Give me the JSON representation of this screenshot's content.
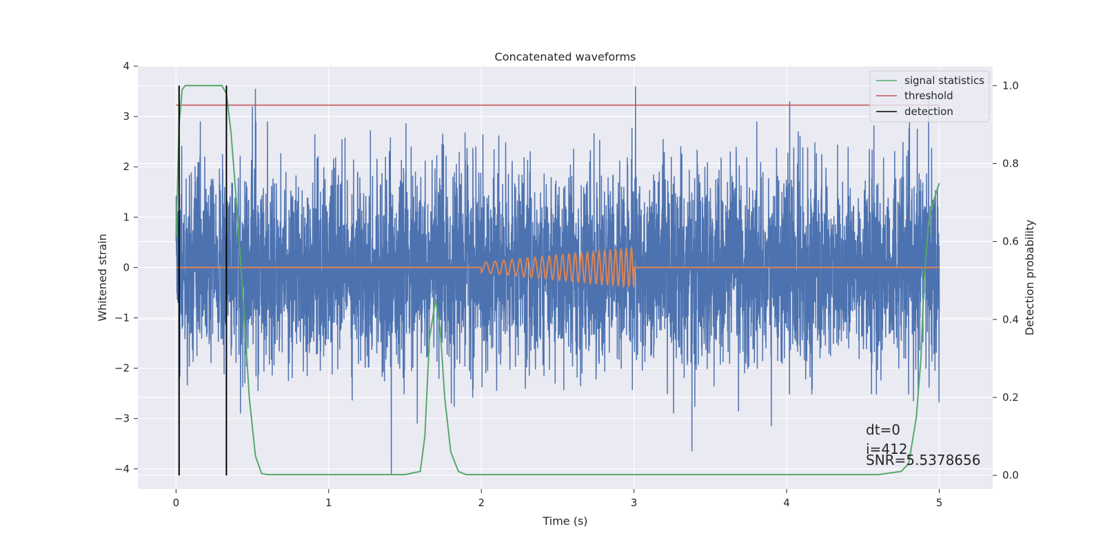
{
  "chart_data": {
    "type": "line",
    "title": "Concatenated waveforms",
    "xlabel": "Time (s)",
    "ylabel": "Whitened strain",
    "y2label": "Detection probability",
    "xlim": [
      -0.25,
      5.35
    ],
    "ylim": [
      -4.4,
      4.0
    ],
    "y2lim": [
      -0.035,
      1.05
    ],
    "x_ticks": [
      0,
      1,
      2,
      3,
      4,
      5
    ],
    "y_ticks": [
      -4,
      -3,
      -2,
      -1,
      0,
      1,
      2,
      3,
      4
    ],
    "y2_ticks": [
      0.0,
      0.2,
      0.4,
      0.6,
      0.8,
      1.0
    ],
    "grid": true,
    "legend_position": "top-right",
    "legend": [
      {
        "label": "signal statistics",
        "color": "#55a868"
      },
      {
        "label": "threshold",
        "color": "#c44e52"
      },
      {
        "label": "detection",
        "color": "#000000"
      }
    ],
    "series": [
      {
        "role": "strain",
        "color": "#4c72b0",
        "x_range": [
          0,
          5
        ],
        "note": "noisy whitened strain, amplitude mostly within ±2.5 with spikes to about 3.6 and -4.1",
        "spikes": [
          [
            0.52,
            3.55
          ],
          [
            3.01,
            3.6
          ],
          [
            4.93,
            3.4
          ],
          [
            1.41,
            -4.1
          ],
          [
            3.38,
            -3.65
          ],
          [
            0.5,
            3.2
          ],
          [
            4.02,
            3.3
          ],
          [
            1.58,
            -3.1
          ],
          [
            3.9,
            -3.15
          ]
        ]
      },
      {
        "role": "chirp",
        "color": "#dd8452",
        "x_range": [
          0,
          5
        ],
        "chirp_x": [
          2.0,
          3.0
        ],
        "amp_start": 0.1,
        "amp_end": 0.4,
        "freq_start_hz": 16,
        "freq_end_hz": 30
      },
      {
        "name": "signal statistics",
        "color": "#55a868",
        "x": [
          0.0,
          0.02,
          0.04,
          0.06,
          0.1,
          0.2,
          0.3,
          0.33,
          0.36,
          0.4,
          0.44,
          0.48,
          0.52,
          0.56,
          0.6,
          1.0,
          1.5,
          1.6,
          1.63,
          1.66,
          1.7,
          1.73,
          1.76,
          1.8,
          1.85,
          1.9,
          2.0,
          3.0,
          4.0,
          4.6,
          4.75,
          4.8,
          4.85,
          4.88,
          4.9,
          4.93,
          4.96,
          5.0
        ],
        "y": [
          0.61,
          0.9,
          0.99,
          1.0,
          1.0,
          1.0,
          1.0,
          0.98,
          0.88,
          0.68,
          0.45,
          0.2,
          0.05,
          0.005,
          0.002,
          0.002,
          0.002,
          0.01,
          0.1,
          0.35,
          0.45,
          0.38,
          0.2,
          0.06,
          0.01,
          0.002,
          0.002,
          0.002,
          0.002,
          0.002,
          0.01,
          0.03,
          0.15,
          0.3,
          0.5,
          0.65,
          0.7,
          0.75
        ]
      },
      {
        "name": "threshold",
        "color": "#c44e52",
        "axis": "y2",
        "x": [
          0,
          5
        ],
        "y": [
          0.95,
          0.95
        ]
      },
      {
        "name": "detection",
        "color": "#000000",
        "axis": "y2",
        "vlines_x": [
          0.02,
          0.33
        ],
        "y_range": [
          0.0,
          1.0
        ]
      }
    ],
    "annotations": [
      "dt=0",
      "i=412",
      "SNR=5.5378656"
    ]
  }
}
